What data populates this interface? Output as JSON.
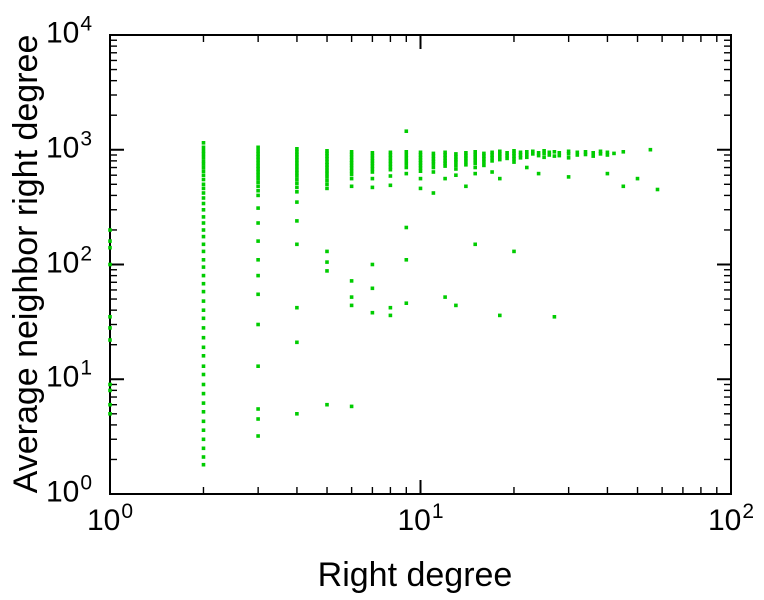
{
  "figure": {
    "background": "#ffffff",
    "text_color": "#000000"
  },
  "chart_data": {
    "type": "scatter",
    "title": "",
    "xlabel": "Right degree",
    "ylabel": "Average neighbor right degree",
    "x_scale": "log",
    "y_scale": "log",
    "xlim": [
      1,
      100
    ],
    "ylim": [
      1,
      10000
    ],
    "grid": false,
    "legend": null,
    "marker": "square",
    "marker_size_px": 3.6,
    "marker_color": "#00cc00",
    "axis_color": "#000000",
    "x_ticks": [
      {
        "value": 1,
        "base": "10",
        "exp": "0"
      },
      {
        "value": 10,
        "base": "10",
        "exp": "1"
      },
      {
        "value": 100,
        "base": "10",
        "exp": "2"
      }
    ],
    "y_ticks": [
      {
        "value": 1,
        "base": "10",
        "exp": "0"
      },
      {
        "value": 10,
        "base": "10",
        "exp": "1"
      },
      {
        "value": 100,
        "base": "10",
        "exp": "2"
      },
      {
        "value": 1000,
        "base": "10",
        "exp": "3"
      },
      {
        "value": 10000,
        "base": "10",
        "exp": "4"
      }
    ],
    "points": [
      [
        1,
        200
      ],
      [
        1,
        160
      ],
      [
        1,
        140
      ],
      [
        1,
        100
      ],
      [
        1,
        35
      ],
      [
        1,
        28
      ],
      [
        1,
        22
      ],
      [
        1,
        9
      ],
      [
        1,
        8
      ],
      [
        1,
        6
      ],
      [
        1,
        5
      ],
      [
        2,
        1150
      ],
      [
        2,
        1050
      ],
      [
        2,
        980
      ],
      [
        2,
        920
      ],
      [
        2,
        860
      ],
      [
        2,
        800
      ],
      [
        2,
        750
      ],
      [
        2,
        700
      ],
      [
        2,
        650
      ],
      [
        2,
        600
      ],
      [
        2,
        550
      ],
      [
        2,
        500
      ],
      [
        2,
        460
      ],
      [
        2,
        420
      ],
      [
        2,
        380
      ],
      [
        2,
        340
      ],
      [
        2,
        300
      ],
      [
        2,
        260
      ],
      [
        2,
        230
      ],
      [
        2,
        200
      ],
      [
        2,
        175
      ],
      [
        2,
        150
      ],
      [
        2,
        130
      ],
      [
        2,
        110
      ],
      [
        2,
        95
      ],
      [
        2,
        80
      ],
      [
        2,
        68
      ],
      [
        2,
        58
      ],
      [
        2,
        48
      ],
      [
        2,
        40
      ],
      [
        2,
        34
      ],
      [
        2,
        28
      ],
      [
        2,
        23
      ],
      [
        2,
        19
      ],
      [
        2,
        16
      ],
      [
        2,
        13
      ],
      [
        2,
        11
      ],
      [
        2,
        9
      ],
      [
        2,
        7.5
      ],
      [
        2,
        6.2
      ],
      [
        2,
        5.2
      ],
      [
        2,
        4.3
      ],
      [
        2,
        3.6
      ],
      [
        2,
        3
      ],
      [
        2,
        2.5
      ],
      [
        2,
        2.1
      ],
      [
        2,
        1.8
      ],
      [
        3,
        1050
      ],
      [
        3,
        980
      ],
      [
        3,
        920
      ],
      [
        3,
        870
      ],
      [
        3,
        820
      ],
      [
        3,
        770
      ],
      [
        3,
        720
      ],
      [
        3,
        680
      ],
      [
        3,
        640
      ],
      [
        3,
        600
      ],
      [
        3,
        560
      ],
      [
        3,
        520
      ],
      [
        3,
        480
      ],
      [
        3,
        440
      ],
      [
        3,
        400
      ],
      [
        3,
        310
      ],
      [
        3,
        230
      ],
      [
        3,
        160
      ],
      [
        3,
        110
      ],
      [
        3,
        80
      ],
      [
        3,
        55
      ],
      [
        3,
        30
      ],
      [
        3,
        13
      ],
      [
        3,
        5.5
      ],
      [
        3,
        4.5
      ],
      [
        3,
        3.2
      ],
      [
        4,
        1020
      ],
      [
        4,
        960
      ],
      [
        4,
        910
      ],
      [
        4,
        860
      ],
      [
        4,
        810
      ],
      [
        4,
        760
      ],
      [
        4,
        715
      ],
      [
        4,
        670
      ],
      [
        4,
        630
      ],
      [
        4,
        590
      ],
      [
        4,
        550
      ],
      [
        4,
        510
      ],
      [
        4,
        470
      ],
      [
        4,
        430
      ],
      [
        4,
        350
      ],
      [
        4,
        240
      ],
      [
        4,
        150
      ],
      [
        4,
        42
      ],
      [
        4,
        21
      ],
      [
        4,
        5
      ],
      [
        5,
        980
      ],
      [
        5,
        930
      ],
      [
        5,
        880
      ],
      [
        5,
        830
      ],
      [
        5,
        780
      ],
      [
        5,
        740
      ],
      [
        5,
        700
      ],
      [
        5,
        660
      ],
      [
        5,
        620
      ],
      [
        5,
        580
      ],
      [
        5,
        540
      ],
      [
        5,
        500
      ],
      [
        5,
        460
      ],
      [
        5,
        130
      ],
      [
        5,
        105
      ],
      [
        5,
        88
      ],
      [
        5,
        6
      ],
      [
        6,
        960
      ],
      [
        6,
        910
      ],
      [
        6,
        860
      ],
      [
        6,
        810
      ],
      [
        6,
        770
      ],
      [
        6,
        730
      ],
      [
        6,
        690
      ],
      [
        6,
        650
      ],
      [
        6,
        610
      ],
      [
        6,
        560
      ],
      [
        6,
        480
      ],
      [
        6,
        72
      ],
      [
        6,
        52
      ],
      [
        6,
        44
      ],
      [
        6,
        5.8
      ],
      [
        7,
        940
      ],
      [
        7,
        890
      ],
      [
        7,
        840
      ],
      [
        7,
        800
      ],
      [
        7,
        760
      ],
      [
        7,
        720
      ],
      [
        7,
        680
      ],
      [
        7,
        640
      ],
      [
        7,
        560
      ],
      [
        7,
        470
      ],
      [
        7,
        100
      ],
      [
        7,
        62
      ],
      [
        7,
        38
      ],
      [
        8,
        950
      ],
      [
        8,
        900
      ],
      [
        8,
        850
      ],
      [
        8,
        800
      ],
      [
        8,
        755
      ],
      [
        8,
        710
      ],
      [
        8,
        670
      ],
      [
        8,
        590
      ],
      [
        8,
        490
      ],
      [
        8,
        42
      ],
      [
        8,
        36
      ],
      [
        9,
        1450
      ],
      [
        9,
        960
      ],
      [
        9,
        900
      ],
      [
        9,
        850
      ],
      [
        9,
        800
      ],
      [
        9,
        750
      ],
      [
        9,
        700
      ],
      [
        9,
        620
      ],
      [
        9,
        210
      ],
      [
        9,
        110
      ],
      [
        9,
        46
      ],
      [
        10,
        950
      ],
      [
        10,
        900
      ],
      [
        10,
        855
      ],
      [
        10,
        810
      ],
      [
        10,
        770
      ],
      [
        10,
        730
      ],
      [
        10,
        690
      ],
      [
        10,
        650
      ],
      [
        10,
        560
      ],
      [
        10,
        460
      ],
      [
        11,
        930
      ],
      [
        11,
        880
      ],
      [
        11,
        830
      ],
      [
        11,
        790
      ],
      [
        11,
        750
      ],
      [
        11,
        700
      ],
      [
        11,
        640
      ],
      [
        11,
        420
      ],
      [
        12,
        950
      ],
      [
        12,
        900
      ],
      [
        12,
        850
      ],
      [
        12,
        800
      ],
      [
        12,
        760
      ],
      [
        12,
        720
      ],
      [
        12,
        560
      ],
      [
        12,
        52
      ],
      [
        13,
        920
      ],
      [
        13,
        870
      ],
      [
        13,
        820
      ],
      [
        13,
        780
      ],
      [
        13,
        730
      ],
      [
        13,
        680
      ],
      [
        13,
        600
      ],
      [
        13,
        44
      ],
      [
        14,
        940
      ],
      [
        14,
        890
      ],
      [
        14,
        840
      ],
      [
        14,
        790
      ],
      [
        14,
        740
      ],
      [
        14,
        480
      ],
      [
        15,
        960
      ],
      [
        15,
        910
      ],
      [
        15,
        860
      ],
      [
        15,
        810
      ],
      [
        15,
        760
      ],
      [
        15,
        700
      ],
      [
        15,
        620
      ],
      [
        15,
        150
      ],
      [
        16,
        930
      ],
      [
        16,
        880
      ],
      [
        16,
        830
      ],
      [
        16,
        780
      ],
      [
        16,
        730
      ],
      [
        17,
        950
      ],
      [
        17,
        900
      ],
      [
        17,
        850
      ],
      [
        17,
        800
      ],
      [
        17,
        640
      ],
      [
        18,
        970
      ],
      [
        18,
        920
      ],
      [
        18,
        870
      ],
      [
        18,
        820
      ],
      [
        18,
        560
      ],
      [
        18,
        36
      ],
      [
        19,
        940
      ],
      [
        19,
        890
      ],
      [
        19,
        840
      ],
      [
        20,
        980
      ],
      [
        20,
        930
      ],
      [
        20,
        880
      ],
      [
        20,
        830
      ],
      [
        20,
        780
      ],
      [
        20,
        130
      ],
      [
        21,
        950
      ],
      [
        21,
        900
      ],
      [
        21,
        850
      ],
      [
        22,
        960
      ],
      [
        22,
        910
      ],
      [
        22,
        860
      ],
      [
        22,
        700
      ],
      [
        23,
        970
      ],
      [
        23,
        920
      ],
      [
        24,
        940
      ],
      [
        24,
        890
      ],
      [
        24,
        620
      ],
      [
        25,
        980
      ],
      [
        25,
        930
      ],
      [
        25,
        860
      ],
      [
        26,
        950
      ],
      [
        26,
        900
      ],
      [
        27,
        960
      ],
      [
        27,
        880
      ],
      [
        27,
        35
      ],
      [
        28,
        940
      ],
      [
        28,
        890
      ],
      [
        30,
        970
      ],
      [
        30,
        920
      ],
      [
        30,
        850
      ],
      [
        30,
        580
      ],
      [
        32,
        950
      ],
      [
        32,
        900
      ],
      [
        34,
        960
      ],
      [
        34,
        910
      ],
      [
        36,
        940
      ],
      [
        36,
        880
      ],
      [
        38,
        970
      ],
      [
        38,
        920
      ],
      [
        40,
        950
      ],
      [
        40,
        900
      ],
      [
        40,
        620
      ],
      [
        42,
        930
      ],
      [
        45,
        960
      ],
      [
        45,
        480
      ],
      [
        50,
        560
      ],
      [
        55,
        1000
      ],
      [
        58,
        450
      ]
    ]
  }
}
